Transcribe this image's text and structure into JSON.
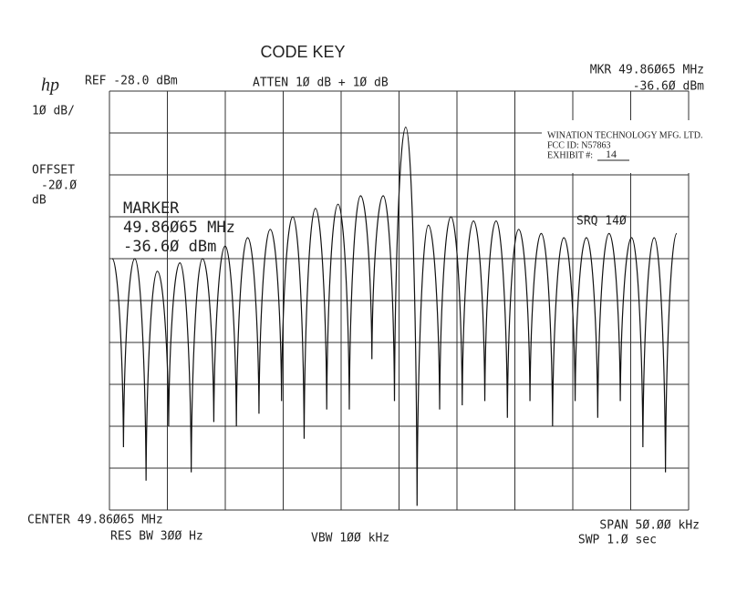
{
  "header": {
    "title": "CODE KEY",
    "logo": "hp",
    "ref": "REF -28.0 dBm",
    "atten": "ATTEN 1Ø dB + 1Ø dB",
    "mkr_freq": "MKR 49.86Ø65 MHz",
    "mkr_level": "-36.6Ø dBm"
  },
  "left": {
    "scale": "1Ø dB/",
    "offset_label": "OFFSET",
    "offset_value": "-2Ø.Ø",
    "offset_unit": "dB"
  },
  "marker": {
    "label": "MARKER",
    "freq": "49.86Ø65 MHz",
    "level": "-36.6Ø dBm"
  },
  "srq": "SRQ 14Ø",
  "footer": {
    "center": "CENTER 49.86Ø65 MHz",
    "res_bw": "RES BW 3ØØ Hz",
    "vbw": "VBW 1ØØ kHz",
    "span": "SPAN 5Ø.ØØ kHz",
    "sweep": "SWP 1.Ø  sec"
  },
  "stamp": {
    "company": "WINATION TECHNOLOGY MFG. LTD.",
    "fcc_id": "FCC ID:  N57863",
    "exhibit_label": "EXHIBIT #:",
    "exhibit_number": "14"
  },
  "trace": {
    "ylim": [
      -128,
      -28
    ],
    "levels": [
      -68,
      -113,
      -68,
      -121,
      -71,
      -108,
      -69,
      -119,
      -68,
      -107,
      -65,
      -108,
      -63,
      -105,
      -61,
      -102,
      -58,
      -111,
      -56,
      -104,
      -55,
      -104,
      -53,
      -92,
      -53,
      -102,
      -36.6,
      -127,
      -60,
      -104,
      -58,
      -103,
      -59,
      -102,
      -59,
      -106,
      -61,
      -102,
      -62,
      -108,
      -63,
      -102,
      -63,
      -106,
      -62,
      -102,
      -63,
      -113,
      -63,
      -119,
      -62
    ]
  }
}
